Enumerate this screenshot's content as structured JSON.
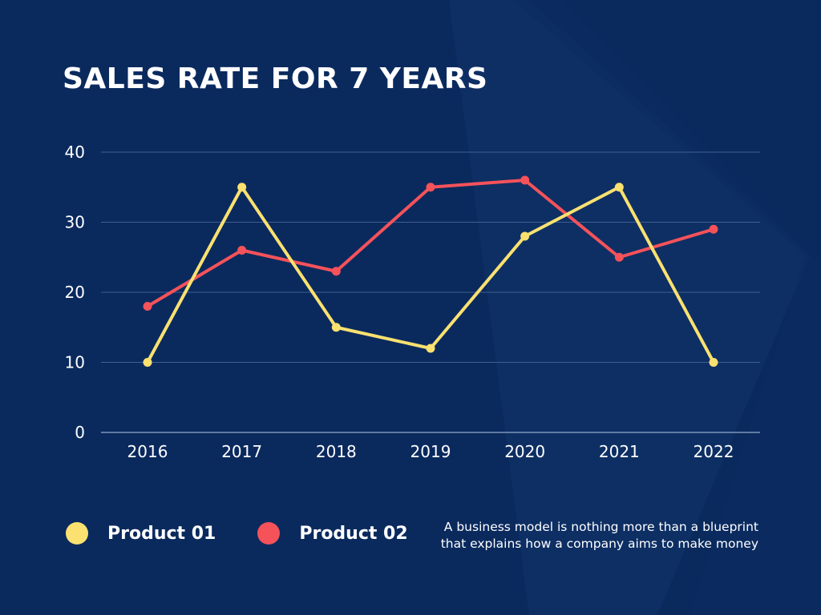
{
  "colors": {
    "background": "#0a2a5e",
    "product_01": "#fae170",
    "product_02": "#f5525a",
    "grid": "#3e5f8e"
  },
  "chart_data": {
    "type": "line",
    "title": "SALES RATE FOR 7 YEARS",
    "categories": [
      "2016",
      "2017",
      "2018",
      "2019",
      "2020",
      "2021",
      "2022"
    ],
    "y_ticks": [
      "0",
      "10",
      "20",
      "30",
      "40"
    ],
    "ylim": [
      0,
      40
    ],
    "grid": true,
    "legend_position": "bottom-left",
    "series": [
      {
        "name": "Product 01",
        "color": "#fae170",
        "values": [
          10,
          35,
          15,
          12,
          28,
          35,
          10
        ]
      },
      {
        "name": "Product 02",
        "color": "#f5525a",
        "values": [
          18,
          26,
          23,
          35,
          36,
          25,
          29
        ]
      }
    ]
  },
  "note": {
    "line1": "A business model is nothing more than a blueprint",
    "line2": "that explains how a company aims to make money"
  }
}
